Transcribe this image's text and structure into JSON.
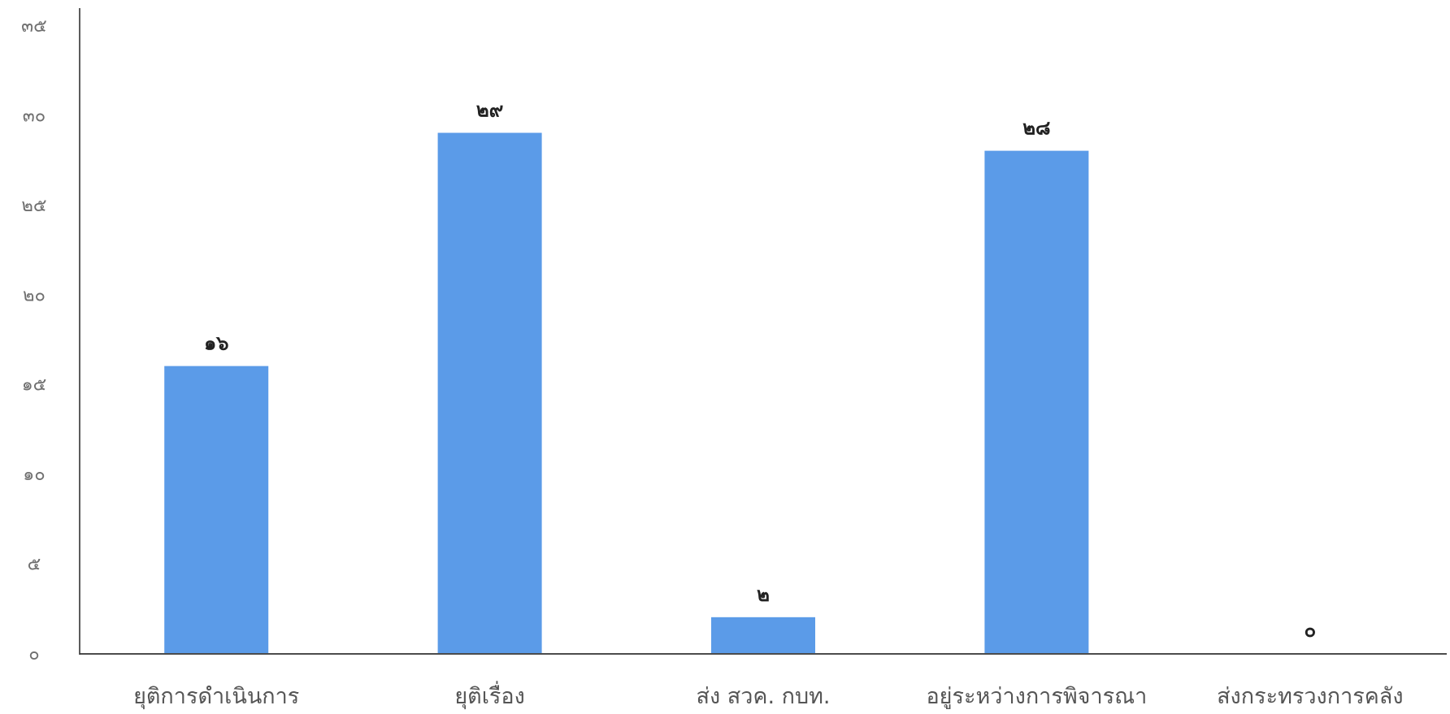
{
  "chart_data": {
    "type": "bar",
    "categories": [
      "ยุติการดำเนินการ",
      "ยุติเรื่อง",
      "ส่ง สวค. กบท.",
      "อยู่ระหว่างการพิจารณา",
      "ส่งกระทรวงการคลัง"
    ],
    "values": [
      16,
      29,
      2,
      28,
      0
    ],
    "value_labels": [
      "๑๖",
      "๒๙",
      "๒",
      "๒๘",
      "๐"
    ],
    "ylim": [
      0,
      35
    ],
    "yticks": [
      0,
      5,
      10,
      15,
      20,
      25,
      30,
      35
    ],
    "ytick_labels": [
      "๐",
      "๕",
      "๑๐",
      "๑๕",
      "๒๐",
      "๒๕",
      "๓๐",
      "๓๕"
    ],
    "title": "",
    "xlabel": "",
    "ylabel": "",
    "grid": false,
    "legend": "none",
    "bar_color": "#5b9be8",
    "axis_color": "#333333"
  }
}
